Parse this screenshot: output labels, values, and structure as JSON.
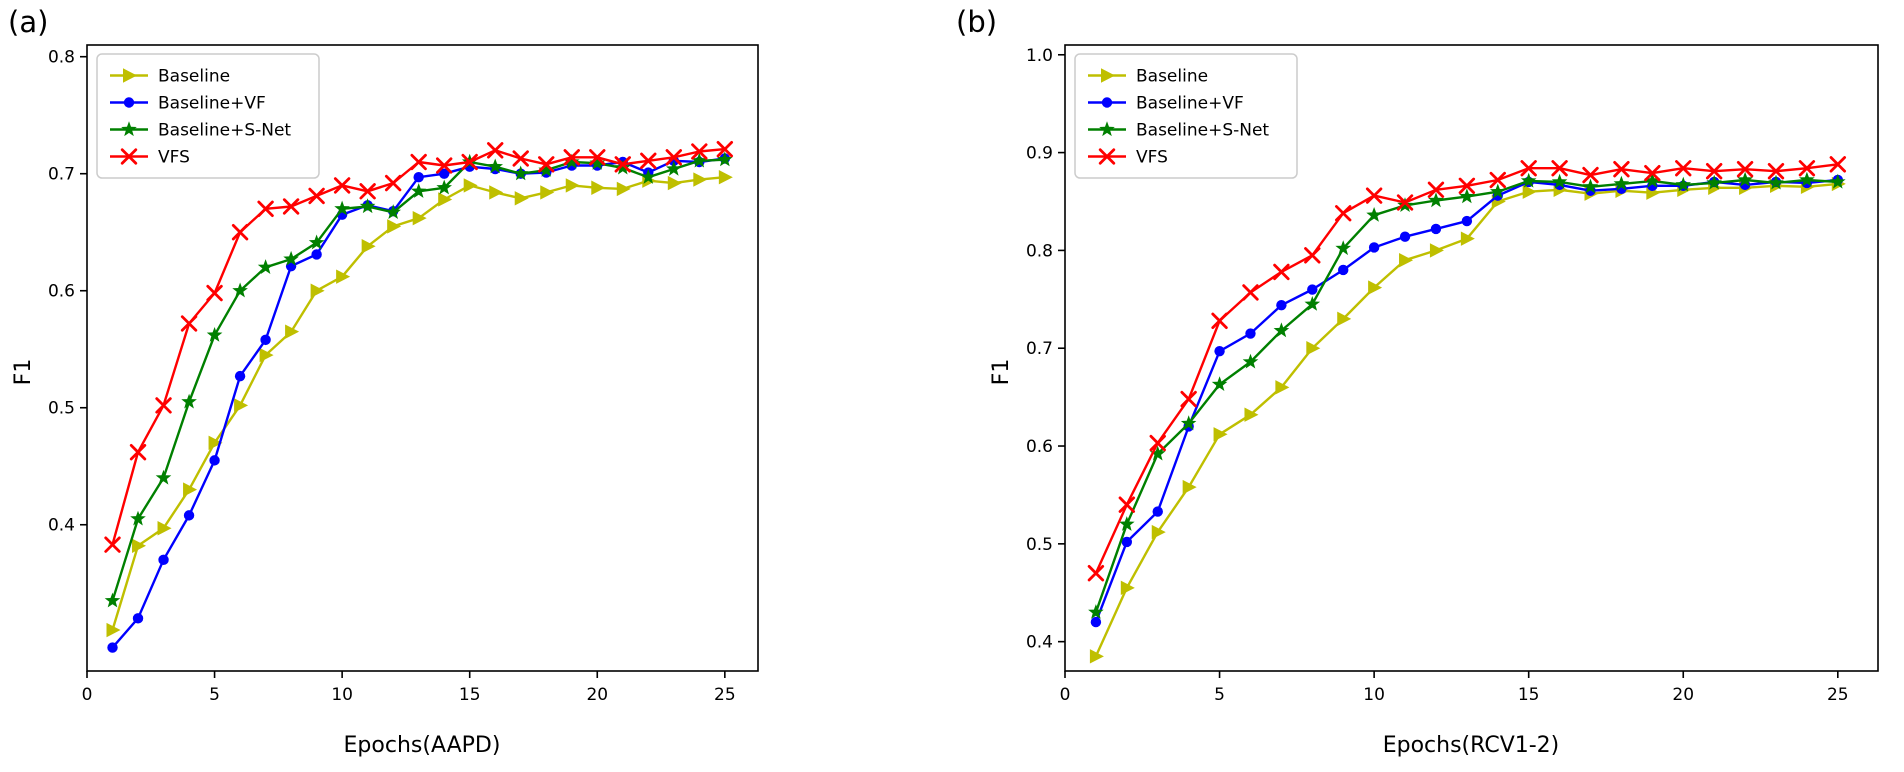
{
  "figure": {
    "background": "#ffffff",
    "axis_color": "#000000",
    "legend_border_color": "#cccccc",
    "legend_background": "#ffffff"
  },
  "chart_data": [
    {
      "type": "line",
      "panel_label": "(a)",
      "xlabel": "Epochs(AAPD)",
      "ylabel": "F1",
      "grid": false,
      "legend_position": "upper left",
      "xlim": [
        0,
        26.3
      ],
      "ylim": [
        0.275,
        0.81
      ],
      "xticks": [
        0,
        5,
        10,
        15,
        20,
        25
      ],
      "yticks": [
        0.4,
        0.5,
        0.6,
        0.7,
        0.8
      ],
      "x": [
        1,
        2,
        3,
        4,
        5,
        6,
        7,
        8,
        9,
        10,
        11,
        12,
        13,
        14,
        15,
        16,
        17,
        18,
        19,
        20,
        21,
        22,
        23,
        24,
        25
      ],
      "series": [
        {
          "name": "Baseline",
          "color": "#bfbf00",
          "marker": "triangle-right",
          "values": [
            0.31,
            0.382,
            0.397,
            0.43,
            0.47,
            0.502,
            0.545,
            0.565,
            0.6,
            0.612,
            0.638,
            0.655,
            0.662,
            0.678,
            0.69,
            0.684,
            0.679,
            0.684,
            0.69,
            0.688,
            0.687,
            0.694,
            0.692,
            0.695,
            0.697
          ]
        },
        {
          "name": "Baseline+VF",
          "color": "#0000ff",
          "marker": "circle",
          "values": [
            0.295,
            0.32,
            0.37,
            0.408,
            0.455,
            0.527,
            0.558,
            0.621,
            0.631,
            0.665,
            0.673,
            0.668,
            0.697,
            0.7,
            0.706,
            0.704,
            0.7,
            0.701,
            0.707,
            0.707,
            0.71,
            0.701,
            0.711,
            0.71,
            0.713
          ]
        },
        {
          "name": "Baseline+S-Net",
          "color": "#008000",
          "marker": "star",
          "values": [
            0.335,
            0.405,
            0.44,
            0.505,
            0.562,
            0.6,
            0.62,
            0.627,
            0.641,
            0.67,
            0.672,
            0.667,
            0.685,
            0.688,
            0.71,
            0.706,
            0.7,
            0.703,
            0.71,
            0.709,
            0.705,
            0.697,
            0.704,
            0.711,
            0.712
          ]
        },
        {
          "name": "VFS",
          "color": "#ff0000",
          "marker": "x",
          "values": [
            0.383,
            0.462,
            0.502,
            0.572,
            0.598,
            0.65,
            0.67,
            0.672,
            0.681,
            0.69,
            0.685,
            0.692,
            0.71,
            0.707,
            0.71,
            0.72,
            0.713,
            0.708,
            0.714,
            0.714,
            0.708,
            0.711,
            0.714,
            0.719,
            0.721
          ]
        }
      ]
    },
    {
      "type": "line",
      "panel_label": "(b)",
      "xlabel": "Epochs(RCV1-2)",
      "ylabel": "F1",
      "grid": false,
      "legend_position": "upper left",
      "xlim": [
        0,
        26.3
      ],
      "ylim": [
        0.37,
        1.01
      ],
      "xticks": [
        0,
        5,
        10,
        15,
        20,
        25
      ],
      "yticks": [
        0.4,
        0.5,
        0.6,
        0.7,
        0.8,
        0.9,
        1.0
      ],
      "x": [
        1,
        2,
        3,
        4,
        5,
        6,
        7,
        8,
        9,
        10,
        11,
        12,
        13,
        14,
        15,
        16,
        17,
        18,
        19,
        20,
        21,
        22,
        23,
        24,
        25
      ],
      "series": [
        {
          "name": "Baseline",
          "color": "#bfbf00",
          "marker": "triangle-right",
          "values": [
            0.385,
            0.455,
            0.512,
            0.558,
            0.612,
            0.632,
            0.66,
            0.7,
            0.73,
            0.762,
            0.79,
            0.8,
            0.812,
            0.85,
            0.86,
            0.862,
            0.858,
            0.861,
            0.859,
            0.862,
            0.864,
            0.864,
            0.866,
            0.865,
            0.868
          ]
        },
        {
          "name": "Baseline+VF",
          "color": "#0000ff",
          "marker": "circle",
          "values": [
            0.42,
            0.502,
            0.533,
            0.62,
            0.697,
            0.715,
            0.744,
            0.76,
            0.78,
            0.803,
            0.814,
            0.822,
            0.83,
            0.856,
            0.87,
            0.867,
            0.861,
            0.863,
            0.866,
            0.866,
            0.87,
            0.867,
            0.87,
            0.869,
            0.872
          ]
        },
        {
          "name": "Baseline+S-Net",
          "color": "#008000",
          "marker": "star",
          "values": [
            0.43,
            0.52,
            0.592,
            0.623,
            0.663,
            0.686,
            0.718,
            0.745,
            0.802,
            0.836,
            0.846,
            0.851,
            0.855,
            0.86,
            0.871,
            0.87,
            0.865,
            0.868,
            0.871,
            0.867,
            0.869,
            0.872,
            0.869,
            0.872,
            0.87
          ]
        },
        {
          "name": "VFS",
          "color": "#ff0000",
          "marker": "x",
          "values": [
            0.47,
            0.54,
            0.603,
            0.648,
            0.728,
            0.757,
            0.778,
            0.795,
            0.838,
            0.856,
            0.849,
            0.862,
            0.866,
            0.872,
            0.884,
            0.884,
            0.877,
            0.883,
            0.879,
            0.884,
            0.881,
            0.883,
            0.881,
            0.884,
            0.888
          ]
        }
      ]
    }
  ]
}
